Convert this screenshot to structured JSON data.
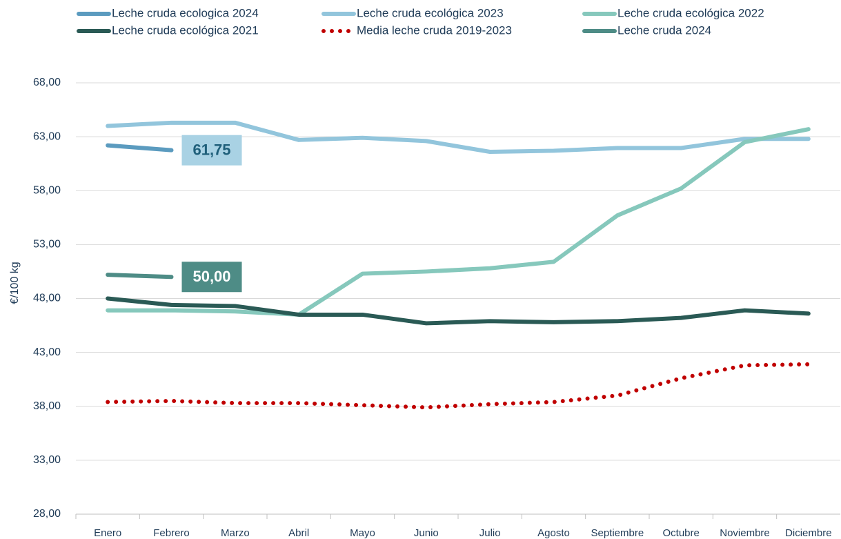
{
  "chart_data": {
    "type": "line",
    "y_axis_label": "€/100 kg",
    "categories": [
      "Enero",
      "Febrero",
      "Marzo",
      "Abril",
      "Mayo",
      "Junio",
      "Julio",
      "Agosto",
      "Septiembre",
      "Octubre",
      "Noviembre",
      "Diciembre"
    ],
    "series": [
      {
        "name": "Leche cruda ecologica 2024",
        "color": "#5b9bbf",
        "style": "solid",
        "values": [
          62.2,
          61.75,
          null,
          null,
          null,
          null,
          null,
          null,
          null,
          null,
          null,
          null
        ],
        "value_labels": [
          null,
          "61,75",
          null,
          null,
          null,
          null,
          null,
          null,
          null,
          null,
          null,
          null
        ],
        "label_box_color": "#a9d2e4",
        "label_text_color": "#1f5f7a"
      },
      {
        "name": "Leche cruda ecológica 2023",
        "color": "#92c5dc",
        "style": "solid",
        "values": [
          64.0,
          64.3,
          64.3,
          62.7,
          62.9,
          62.6,
          61.6,
          61.7,
          61.95,
          61.95,
          62.8,
          62.8
        ]
      },
      {
        "name": "Leche cruda ecológica 2022",
        "color": "#86c8bc",
        "style": "solid",
        "values": [
          46.9,
          46.9,
          46.8,
          46.5,
          50.3,
          50.5,
          50.8,
          51.4,
          55.7,
          58.2,
          62.5,
          63.7
        ]
      },
      {
        "name": "Leche cruda ecológica 2021",
        "color": "#2a5a55",
        "style": "solid",
        "values": [
          48.0,
          47.4,
          47.3,
          46.5,
          46.5,
          45.7,
          45.9,
          45.8,
          45.9,
          46.2,
          46.9,
          46.6
        ]
      },
      {
        "name": "Media leche cruda 2019-2023",
        "color": "#c00000",
        "style": "dotted",
        "values": [
          38.4,
          38.5,
          38.3,
          38.3,
          38.1,
          37.9,
          38.2,
          38.4,
          39.0,
          40.6,
          41.8,
          41.9
        ]
      },
      {
        "name": "Leche cruda 2024",
        "color": "#4e8c86",
        "style": "solid",
        "values": [
          50.2,
          50.0,
          null,
          null,
          null,
          null,
          null,
          null,
          null,
          null,
          null,
          null
        ],
        "value_labels": [
          null,
          "50,00",
          null,
          null,
          null,
          null,
          null,
          null,
          null,
          null,
          null,
          null
        ],
        "label_box_color": "#4e8c86",
        "label_text_color": "#ffffff"
      }
    ],
    "ylim": [
      28,
      68
    ],
    "yticks": [
      {
        "value": 28,
        "label": "28,00"
      },
      {
        "value": 33,
        "label": "33,00"
      },
      {
        "value": 38,
        "label": "38,00"
      },
      {
        "value": 43,
        "label": "43,00"
      },
      {
        "value": 48,
        "label": "48,00"
      },
      {
        "value": 53,
        "label": "53,00"
      },
      {
        "value": 58,
        "label": "58,00"
      },
      {
        "value": 63,
        "label": "63,00"
      },
      {
        "value": 68,
        "label": "68,00"
      }
    ],
    "grid": true,
    "legend": "top"
  }
}
